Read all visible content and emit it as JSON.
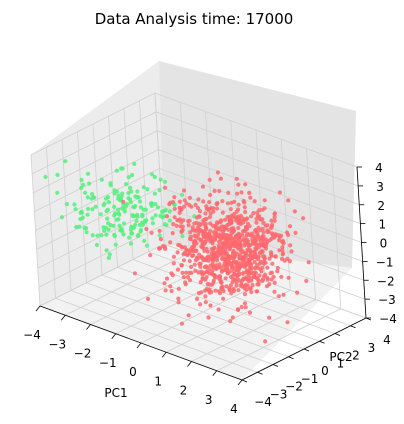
{
  "chart_data": {
    "type": "scatter",
    "projection": "3d",
    "title": "Data Analysis time: 17000",
    "xlabel": "PC1",
    "ylabel": "PC2",
    "zlabel": "",
    "xlim": [
      -4,
      4
    ],
    "ylim": [
      -4,
      4
    ],
    "zlim": [
      -4,
      4
    ],
    "xticks": [
      "−4",
      "−3",
      "−2",
      "−1",
      "0",
      "1",
      "2",
      "3",
      "4"
    ],
    "yticks": [
      "−4",
      "−3",
      "−2",
      "−1",
      "0",
      "1",
      "2",
      "3",
      "4"
    ],
    "zticks": [
      "−4",
      "−3",
      "−2",
      "−1",
      "0",
      "1",
      "2",
      "3",
      "4"
    ],
    "grid": true,
    "series": [
      {
        "color": "#ff6a6f",
        "approx_count": 900,
        "center": [
          0.6,
          0.9,
          -0.8
        ],
        "spread": [
          0.9,
          1.1,
          1.2
        ]
      },
      {
        "color": "#55f07e",
        "approx_count": 180,
        "center": [
          -1.6,
          -2.2,
          1.4
        ],
        "spread": [
          0.8,
          1.0,
          0.9
        ]
      }
    ]
  }
}
